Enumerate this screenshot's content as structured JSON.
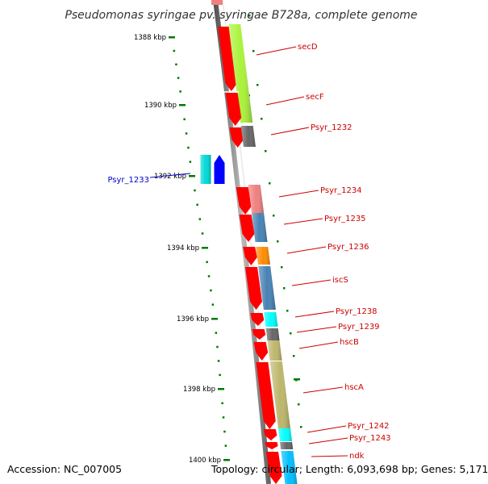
{
  "title": "Pseudomonas syringae pv. syringae B728a, complete genome",
  "accession": "Accession: NC_007005",
  "summary": "Topology: circular; Length: 6,093,698 bp; Genes: 5,171",
  "ticks": [
    "1388 kbp",
    "1390 kbp",
    "1392 kbp",
    "1394 kbp",
    "1396 kbp",
    "1398 kbp",
    "1400 kbp"
  ],
  "colors": {
    "cds_forward": "#ff0000",
    "cds_reverse": "#0000ff",
    "label_forward": "#cc0000",
    "label_reverse": "#0000cc",
    "backbone": "#888888",
    "tick_marks": "#007a00"
  },
  "genes": [
    {
      "name": "secD",
      "strand": "forward",
      "cog_color": "#aaf23a"
    },
    {
      "name": "secF",
      "strand": "forward",
      "cog_color": "#aaf23a"
    },
    {
      "name": "Psyr_1232",
      "strand": "forward",
      "cog_color": "#666666"
    },
    {
      "name": "Psyr_1233",
      "strand": "reverse",
      "cog_color": "#00d8d8"
    },
    {
      "name": "Psyr_1234",
      "strand": "forward",
      "cog_color": "#f08080"
    },
    {
      "name": "Psyr_1235",
      "strand": "forward",
      "cog_color": "#4682b4"
    },
    {
      "name": "Psyr_1236",
      "strand": "forward",
      "cog_color": "#ff8c00"
    },
    {
      "name": "iscS",
      "strand": "forward",
      "cog_color": "#4682b4"
    },
    {
      "name": "Psyr_1238",
      "strand": "forward",
      "cog_color": "#00ffff"
    },
    {
      "name": "Psyr_1239",
      "strand": "forward",
      "cog_color": "#666666"
    },
    {
      "name": "hscB",
      "strand": "forward",
      "cog_color": "#bdb76b"
    },
    {
      "name": "hscA",
      "strand": "forward",
      "cog_color": "#bdb76b"
    },
    {
      "name": "Psyr_1242",
      "strand": "forward",
      "cog_color": "#00ffff"
    },
    {
      "name": "Psyr_1243",
      "strand": "forward",
      "cog_color": "#666666"
    },
    {
      "name": "ndk",
      "strand": "forward",
      "cog_color": "#00bfff"
    }
  ]
}
